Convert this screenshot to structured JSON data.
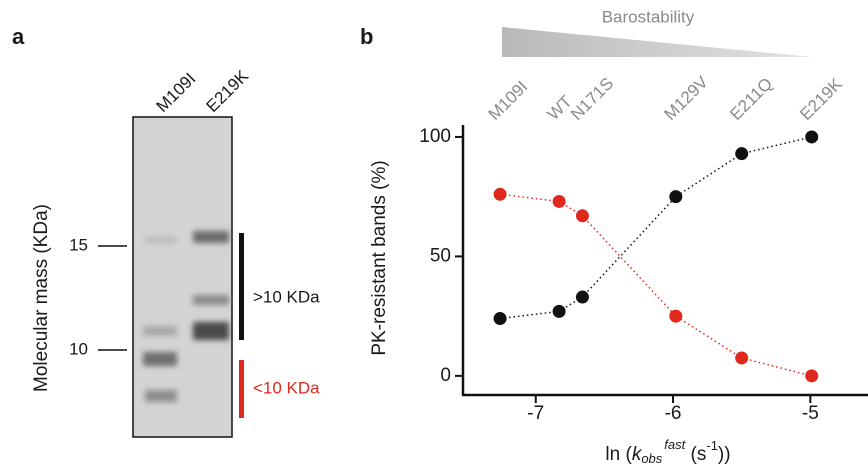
{
  "panel_a": {
    "letter": "a",
    "lanes": [
      "M109I",
      "E219K"
    ],
    "y_label": "Molecular mass (KDa)",
    "markers": [
      "15",
      "10"
    ],
    "bracket_high": ">10 KDa",
    "bracket_low": "<10 KDa"
  },
  "chart_data": {
    "type": "line",
    "panel": "b",
    "title": "Barostability",
    "x": [
      -7.26,
      -6.83,
      -6.66,
      -5.98,
      -5.5,
      -4.99
    ],
    "point_labels": [
      "M109I",
      "WT",
      "N171S",
      "M129V",
      "E211Q",
      "E219K"
    ],
    "series": [
      {
        "color": "#111111",
        "values": [
          24,
          27,
          33,
          75,
          93,
          100
        ]
      },
      {
        "color": "#e0291d",
        "values": [
          76,
          73,
          67,
          25,
          7.5,
          0
        ]
      }
    ],
    "xlim": [
      -7.53,
      -4.58
    ],
    "ylim": [
      -8,
      105
    ],
    "xticks": [
      -7,
      -6,
      -5
    ],
    "yticks": [
      0,
      50,
      100
    ],
    "ylabel": "PK-resistant bands (%)",
    "xlabel_parts": [
      "ln (",
      "k",
      "obs",
      "fast",
      " (s",
      "-1",
      "))"
    ]
  }
}
